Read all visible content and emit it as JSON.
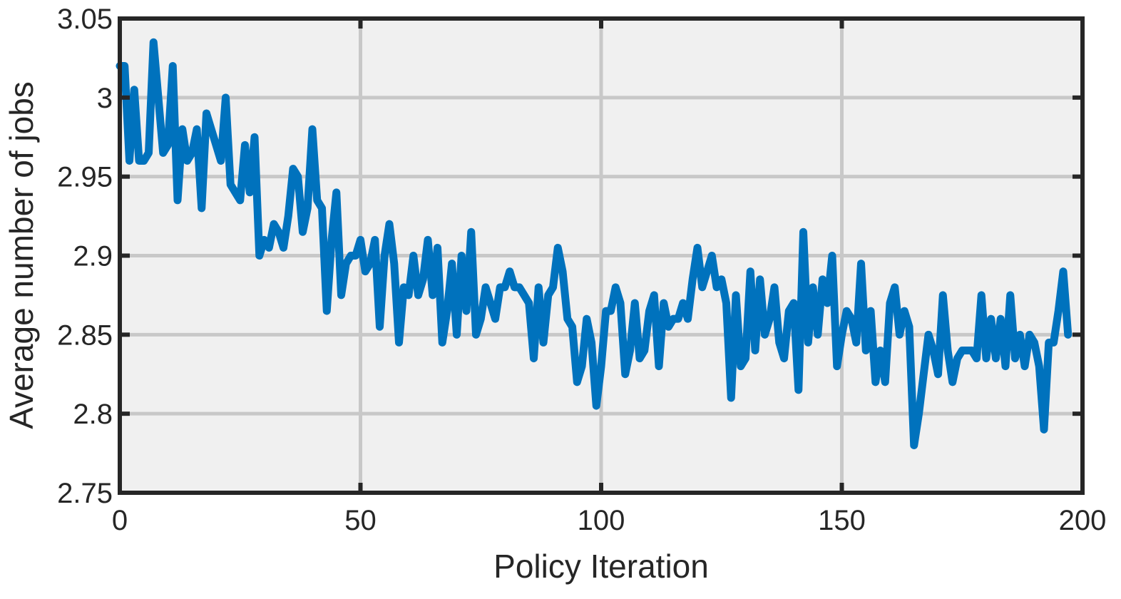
{
  "chart_data": {
    "type": "line",
    "title": "",
    "xlabel": "Policy Iteration",
    "ylabel": "Average number of jobs",
    "xlim": [
      0,
      200
    ],
    "ylim": [
      2.75,
      3.05
    ],
    "xticks": [
      0,
      50,
      100,
      150,
      200
    ],
    "yticks": [
      2.75,
      2.8,
      2.85,
      2.9,
      2.95,
      3.0,
      3.05
    ],
    "xtick_labels": [
      "0",
      "50",
      "100",
      "150",
      "200"
    ],
    "ytick_labels": [
      "2.75",
      "2.8",
      "2.85",
      "2.9",
      "2.95",
      "3",
      "3.05"
    ],
    "grid": true,
    "legend": "none",
    "background_color": "#f0f0f0",
    "line_color": "#0072bd",
    "series": [
      {
        "values": [
          3.02,
          3.02,
          2.96,
          3.005,
          2.96,
          2.96,
          2.965,
          3.035,
          3.0,
          2.965,
          2.97,
          3.02,
          2.935,
          2.98,
          2.96,
          2.965,
          2.98,
          2.93,
          2.99,
          2.98,
          2.97,
          2.96,
          3.0,
          2.945,
          2.94,
          2.935,
          2.97,
          2.94,
          2.975,
          2.9,
          2.91,
          2.905,
          2.92,
          2.915,
          2.905,
          2.925,
          2.955,
          2.95,
          2.915,
          2.93,
          2.98,
          2.935,
          2.93,
          2.865,
          2.91,
          2.94,
          2.875,
          2.895,
          2.9,
          2.9,
          2.91,
          2.89,
          2.895,
          2.91,
          2.855,
          2.9,
          2.92,
          2.895,
          2.845,
          2.88,
          2.875,
          2.9,
          2.875,
          2.885,
          2.91,
          2.875,
          2.905,
          2.845,
          2.865,
          2.895,
          2.85,
          2.9,
          2.865,
          2.915,
          2.85,
          2.86,
          2.88,
          2.87,
          2.86,
          2.88,
          2.88,
          2.89,
          2.88,
          2.88,
          2.875,
          2.87,
          2.835,
          2.88,
          2.845,
          2.875,
          2.88,
          2.905,
          2.89,
          2.86,
          2.855,
          2.82,
          2.83,
          2.86,
          2.845,
          2.805,
          2.83,
          2.865,
          2.865,
          2.88,
          2.87,
          2.825,
          2.84,
          2.87,
          2.835,
          2.84,
          2.865,
          2.875,
          2.83,
          2.87,
          2.855,
          2.86,
          2.86,
          2.87,
          2.86,
          2.885,
          2.905,
          2.88,
          2.89,
          2.9,
          2.88,
          2.885,
          2.87,
          2.81,
          2.875,
          2.83,
          2.835,
          2.89,
          2.84,
          2.885,
          2.85,
          2.86,
          2.88,
          2.845,
          2.835,
          2.865,
          2.87,
          2.815,
          2.915,
          2.845,
          2.88,
          2.85,
          2.885,
          2.87,
          2.9,
          2.83,
          2.85,
          2.865,
          2.86,
          2.845,
          2.895,
          2.84,
          2.865,
          2.82,
          2.84,
          2.82,
          2.87,
          2.88,
          2.85,
          2.865,
          2.855,
          2.78,
          2.8,
          2.825,
          2.85,
          2.84,
          2.825,
          2.875,
          2.84,
          2.82,
          2.835,
          2.84,
          2.84,
          2.84,
          2.835,
          2.875,
          2.835,
          2.86,
          2.835,
          2.86,
          2.83,
          2.875,
          2.835,
          2.85,
          2.83,
          2.85,
          2.845,
          2.83,
          2.79,
          2.845,
          2.845,
          2.865,
          2.89,
          2.85
        ]
      }
    ]
  }
}
